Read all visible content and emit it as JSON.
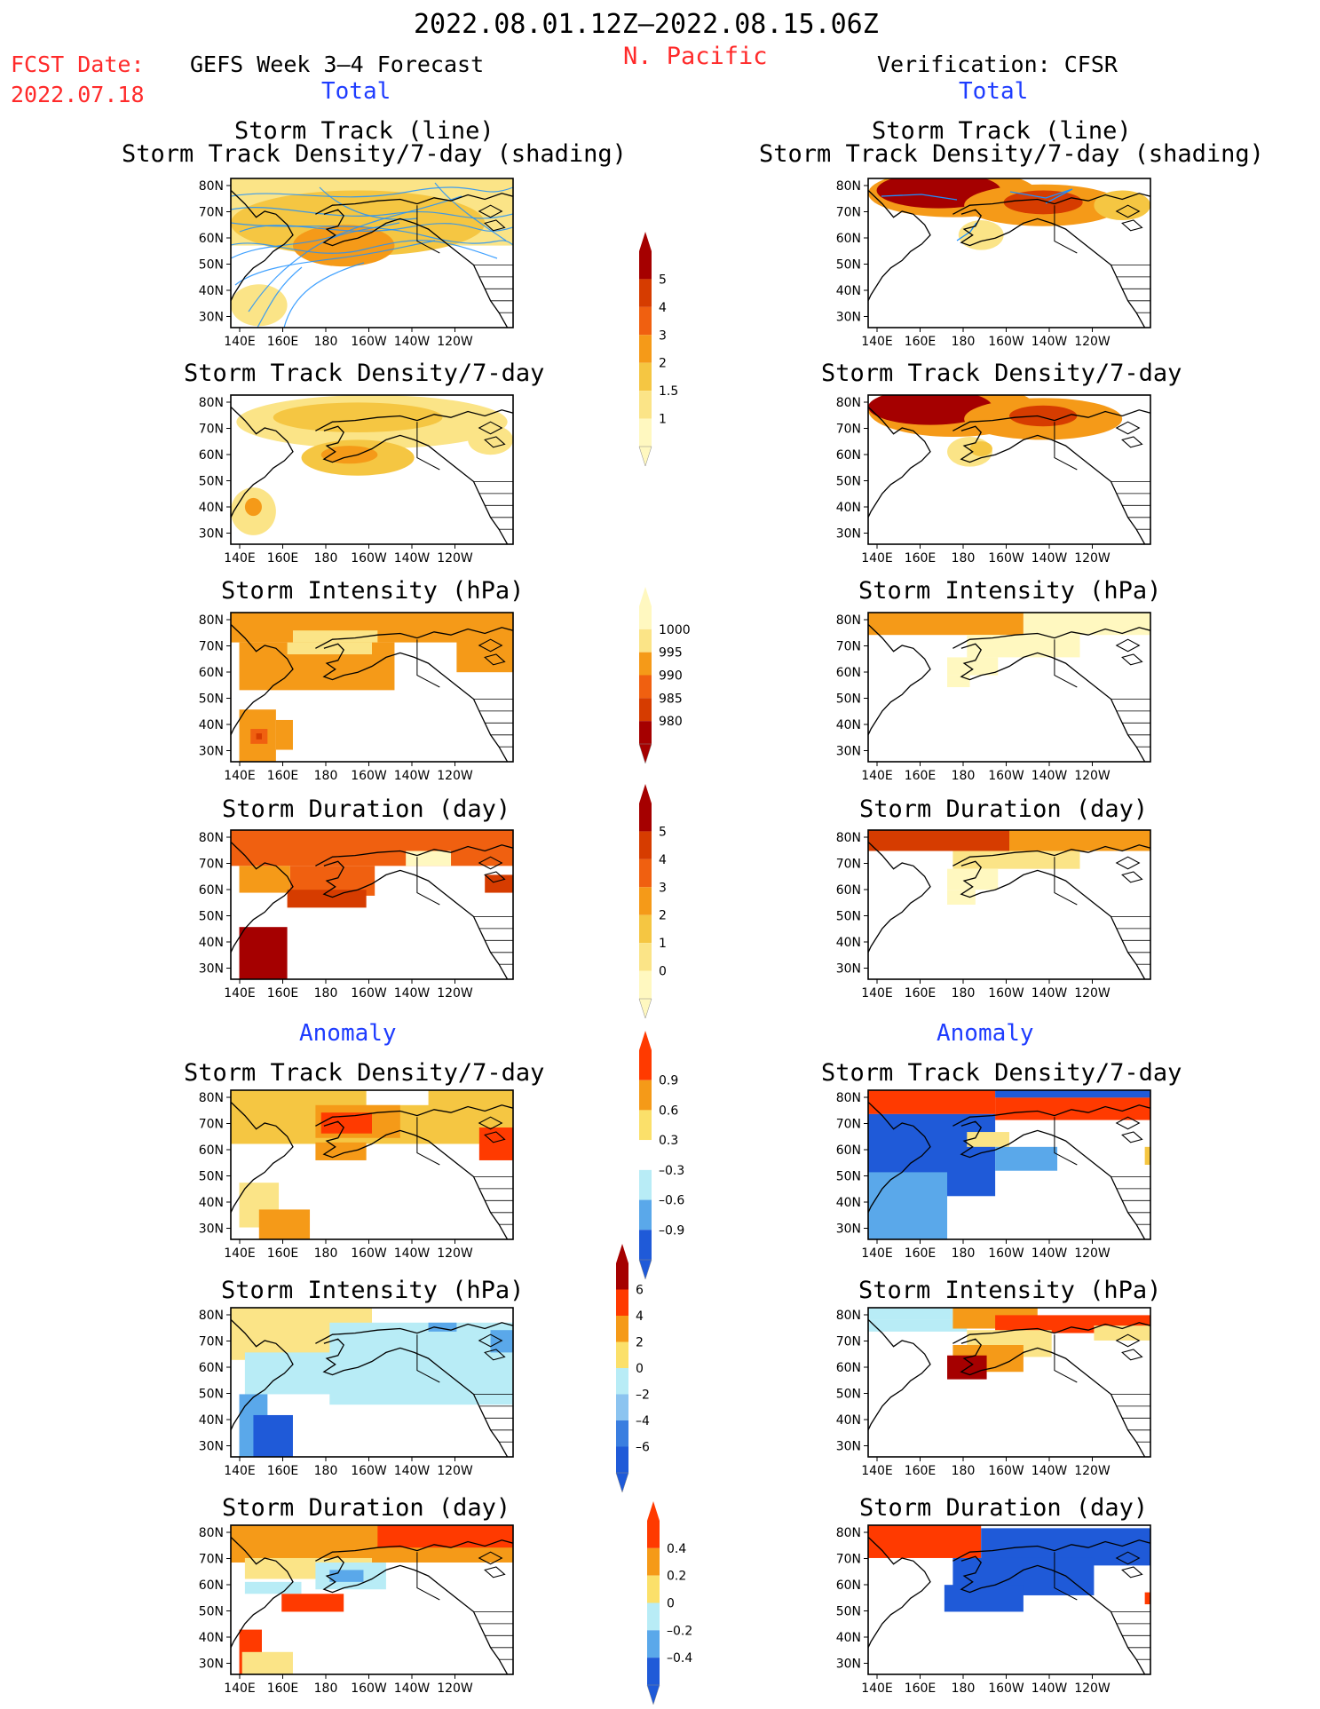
{
  "header": {
    "date_range": "2022.08.01.12Z–2022.08.15.06Z",
    "region": "N. Pacific",
    "fcst_date_label": "FCST Date:",
    "fcst_date_value": "2022.07.18",
    "left_title": "GEFS Week 3–4 Forecast",
    "right_title": "Verification: CFSR"
  },
  "sections": {
    "total": "Total",
    "anomaly": "Anomaly"
  },
  "panel_titles": {
    "track_line": "Storm Track (line)",
    "track_density_shading": "Storm Track Density/7-day (shading)",
    "track_density": "Storm Track Density/7-day",
    "intensity": "Storm Intensity (hPa)",
    "duration": "Storm Duration (day)"
  },
  "axes": {
    "lat_labels": [
      "80N",
      "70N",
      "60N",
      "50N",
      "40N",
      "30N"
    ],
    "lon_labels": [
      "140E",
      "160E",
      "180",
      "160W",
      "140W",
      "120W"
    ]
  },
  "colorbars": {
    "density_total": {
      "labels": [
        "5",
        "4",
        "3",
        "2",
        "1.5",
        "1"
      ],
      "colors": [
        "#a50000",
        "#d63c00",
        "#f06010",
        "#f59a18",
        "#f5c642",
        "#fbe487",
        "#fff8c0"
      ]
    },
    "intensity_total": {
      "labels": [
        "1000",
        "995",
        "990",
        "985",
        "980"
      ],
      "colors": [
        "#fff8c0",
        "#fbe487",
        "#f59a18",
        "#f06010",
        "#d63c00",
        "#a50000"
      ]
    },
    "duration_total": {
      "labels": [
        "5",
        "4",
        "3",
        "2",
        "1",
        "0"
      ],
      "colors": [
        "#a50000",
        "#d63c00",
        "#f06010",
        "#f59a18",
        "#f5c642",
        "#fbe487",
        "#fff8c0"
      ]
    },
    "density_anom": {
      "labels": [
        "0.9",
        "0.6",
        "0.3",
        "–0.3",
        "–0.6",
        "–0.9"
      ],
      "colors": [
        "#ff3a00",
        "#f59a18",
        "#fbe06a",
        "#ffffff",
        "#b8ecf6",
        "#5aa8ea",
        "#1f5ad8"
      ]
    },
    "intensity_anom": {
      "labels": [
        "6",
        "4",
        "2",
        "0",
        "–2",
        "–4",
        "–6"
      ],
      "colors": [
        "#a50000",
        "#ff3a00",
        "#f59a18",
        "#fbe06a",
        "#b8ecf6",
        "#8cc4f0",
        "#3a7ee0",
        "#1f5ad8"
      ]
    },
    "duration_anom": {
      "labels": [
        "0.4",
        "0.2",
        "0",
        "–0.2",
        "–0.4"
      ],
      "colors": [
        "#ff3a00",
        "#f59a18",
        "#fbe06a",
        "#b8ecf6",
        "#5aa8ea",
        "#1f5ad8"
      ]
    }
  },
  "palette": {
    "lightest": "#fff8c0",
    "light": "#fbe487",
    "yellow": "#f5c642",
    "orange": "#f59a18",
    "deep_orange": "#f06010",
    "red": "#d63c00",
    "dark_red": "#a50000",
    "anom_pos": "#ff3a00",
    "anom_light_blue": "#b8ecf6",
    "anom_mid_blue": "#5aa8ea",
    "anom_dark_blue": "#1f5ad8",
    "track_line": "#1e90ff",
    "coast": "#000000"
  }
}
